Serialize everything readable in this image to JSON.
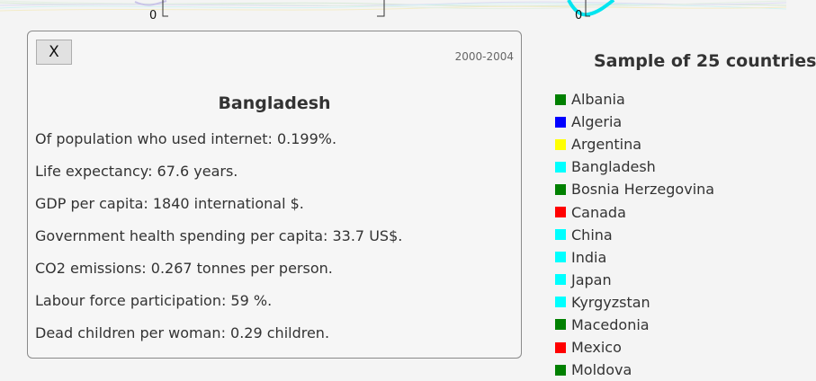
{
  "chart_axis": {
    "zero_labels": [
      "0",
      "0"
    ]
  },
  "info_panel": {
    "close_label": "X",
    "period": "2000-2004",
    "country": "Bangladesh",
    "stats": [
      "Of population who used internet: 0.199%.",
      "Life expectancy: 67.6 years.",
      "GDP per capita: 1840 international $.",
      "Government health spending per capita: 33.7 US$.",
      "CO2 emissions: 0.267 tonnes per person.",
      "Labour force participation: 59 %.",
      "Dead children per woman: 0.29 children."
    ]
  },
  "legend": {
    "title": "Sample of 25 countries",
    "items": [
      {
        "label": "Albania",
        "color": "#008000"
      },
      {
        "label": "Algeria",
        "color": "#0000ff"
      },
      {
        "label": "Argentina",
        "color": "#ffff00"
      },
      {
        "label": "Bangladesh",
        "color": "#00ffff"
      },
      {
        "label": "Bosnia Herzegovina",
        "color": "#008000"
      },
      {
        "label": "Canada",
        "color": "#ff0000"
      },
      {
        "label": "China",
        "color": "#00ffff"
      },
      {
        "label": "India",
        "color": "#00ffff"
      },
      {
        "label": "Japan",
        "color": "#00ffff"
      },
      {
        "label": "Kyrgyzstan",
        "color": "#00ffff"
      },
      {
        "label": "Macedonia",
        "color": "#008000"
      },
      {
        "label": "Mexico",
        "color": "#ff0000"
      },
      {
        "label": "Moldova",
        "color": "#008000"
      }
    ]
  }
}
